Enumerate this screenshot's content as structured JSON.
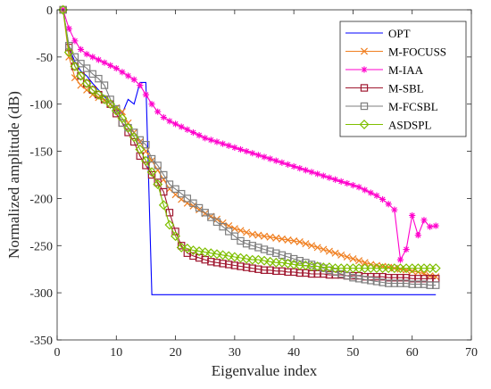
{
  "chart_data": {
    "type": "line",
    "xlabel": "Eigenvalue index",
    "ylabel": "Normalized amplitude (dB)",
    "xlim": [
      0,
      70
    ],
    "ylim": [
      -350,
      0
    ],
    "xticks": [
      0,
      10,
      20,
      30,
      40,
      50,
      60,
      70
    ],
    "yticks": [
      0,
      -50,
      -100,
      -150,
      -200,
      -250,
      -300,
      -350
    ],
    "grid": false,
    "legend_position": "top-right",
    "series": [
      {
        "name": "OPT",
        "color": "#0000FF",
        "marker": "none",
        "x": [
          1,
          2,
          3,
          4,
          5,
          6,
          7,
          8,
          9,
          10,
          11,
          12,
          13,
          14,
          15,
          16,
          17,
          20,
          30,
          40,
          50,
          60,
          64
        ],
        "y": [
          0,
          -40,
          -55,
          -65,
          -70,
          -78,
          -85,
          -92,
          -100,
          -105,
          -110,
          -95,
          -100,
          -77,
          -77,
          -302,
          -302,
          -302,
          -302,
          -302,
          -302,
          -302,
          -302
        ]
      },
      {
        "name": "M-FOCUSS",
        "color": "#F07F20",
        "marker": "x",
        "x": [
          1,
          2,
          3,
          4,
          5,
          6,
          7,
          8,
          9,
          10,
          11,
          12,
          13,
          14,
          15,
          16,
          17,
          18,
          19,
          20,
          21,
          22,
          23,
          24,
          25,
          26,
          27,
          28,
          29,
          30,
          31,
          32,
          33,
          34,
          35,
          36,
          37,
          38,
          39,
          40,
          41,
          42,
          43,
          44,
          45,
          46,
          47,
          48,
          49,
          50,
          51,
          52,
          53,
          54,
          55,
          56,
          57,
          58,
          59,
          60,
          61,
          62,
          63,
          64
        ],
        "y": [
          0,
          -50,
          -72,
          -80,
          -85,
          -90,
          -93,
          -96,
          -100,
          -104,
          -108,
          -120,
          -130,
          -140,
          -150,
          -160,
          -170,
          -180,
          -190,
          -196,
          -201,
          -205,
          -208,
          -212,
          -216,
          -219,
          -222,
          -226,
          -229,
          -232,
          -234,
          -236,
          -238,
          -239,
          -240,
          -241,
          -242,
          -243,
          -244,
          -245,
          -246,
          -248,
          -250,
          -252,
          -254,
          -256,
          -258,
          -260,
          -262,
          -264,
          -266,
          -268,
          -270,
          -271,
          -272,
          -273,
          -274,
          -275,
          -276,
          -277,
          -278,
          -280,
          -282,
          -283
        ]
      },
      {
        "name": "M-IAA",
        "color": "#FF00CC",
        "marker": "asterisk",
        "x": [
          1,
          2,
          3,
          4,
          5,
          6,
          7,
          8,
          9,
          10,
          11,
          12,
          13,
          14,
          15,
          16,
          17,
          18,
          19,
          20,
          21,
          22,
          23,
          24,
          25,
          26,
          27,
          28,
          29,
          30,
          31,
          32,
          33,
          34,
          35,
          36,
          37,
          38,
          39,
          40,
          41,
          42,
          43,
          44,
          45,
          46,
          47,
          48,
          49,
          50,
          51,
          52,
          53,
          54,
          55,
          56,
          57,
          58,
          59,
          60,
          61,
          62,
          63,
          64
        ],
        "y": [
          0,
          -20,
          -33,
          -42,
          -47,
          -50,
          -53,
          -56,
          -59,
          -62,
          -66,
          -70,
          -74,
          -80,
          -90,
          -100,
          -108,
          -114,
          -118,
          -121,
          -124,
          -127,
          -130,
          -133,
          -136,
          -138,
          -140,
          -142,
          -144,
          -146,
          -148,
          -150,
          -152,
          -154,
          -156,
          -158,
          -160,
          -162,
          -164,
          -166,
          -168,
          -170,
          -172,
          -174,
          -176,
          -178,
          -180,
          -182,
          -184,
          -186,
          -188,
          -191,
          -194,
          -197,
          -201,
          -206,
          -212,
          -265,
          -254,
          -218,
          -239,
          -223,
          -230,
          -229
        ]
      },
      {
        "name": "M-SBL",
        "color": "#A01830",
        "marker": "square",
        "x": [
          1,
          2,
          3,
          4,
          5,
          6,
          7,
          8,
          9,
          10,
          11,
          12,
          13,
          14,
          15,
          16,
          17,
          18,
          19,
          20,
          21,
          22,
          23,
          24,
          25,
          26,
          27,
          28,
          29,
          30,
          31,
          32,
          33,
          34,
          35,
          36,
          37,
          38,
          39,
          40,
          41,
          42,
          43,
          44,
          45,
          46,
          47,
          48,
          49,
          50,
          51,
          52,
          53,
          54,
          55,
          56,
          57,
          58,
          59,
          60,
          61,
          62,
          63,
          64
        ],
        "y": [
          0,
          -40,
          -60,
          -70,
          -78,
          -85,
          -90,
          -95,
          -100,
          -110,
          -120,
          -130,
          -140,
          -155,
          -165,
          -175,
          -183,
          -193,
          -215,
          -235,
          -250,
          -258,
          -261,
          -263,
          -265,
          -267,
          -268,
          -269,
          -270,
          -271,
          -272,
          -273,
          -274,
          -275,
          -276,
          -276,
          -277,
          -277,
          -278,
          -278,
          -279,
          -279,
          -280,
          -280,
          -280,
          -281,
          -281,
          -281,
          -282,
          -282,
          -282,
          -283,
          -283,
          -283,
          -283,
          -284,
          -284,
          -284,
          -284,
          -285,
          -285,
          -285,
          -285,
          -285
        ]
      },
      {
        "name": "M-FCSBL",
        "color": "#7F7F7F",
        "marker": "square",
        "x": [
          1,
          2,
          3,
          4,
          5,
          6,
          7,
          8,
          9,
          10,
          11,
          12,
          13,
          14,
          15,
          16,
          17,
          18,
          19,
          20,
          21,
          22,
          23,
          24,
          25,
          26,
          27,
          28,
          29,
          30,
          31,
          32,
          33,
          34,
          35,
          36,
          37,
          38,
          39,
          40,
          41,
          42,
          43,
          44,
          45,
          46,
          47,
          48,
          49,
          50,
          51,
          52,
          53,
          54,
          55,
          56,
          57,
          58,
          59,
          60,
          61,
          62,
          63,
          64
        ],
        "y": [
          0,
          -38,
          -50,
          -57,
          -62,
          -68,
          -73,
          -80,
          -95,
          -105,
          -120,
          -125,
          -130,
          -138,
          -143,
          -158,
          -165,
          -175,
          -185,
          -190,
          -195,
          -200,
          -205,
          -210,
          -215,
          -220,
          -225,
          -230,
          -235,
          -240,
          -245,
          -248,
          -250,
          -252,
          -254,
          -256,
          -258,
          -260,
          -262,
          -264,
          -266,
          -268,
          -270,
          -272,
          -274,
          -276,
          -278,
          -280,
          -282,
          -284,
          -285,
          -286,
          -287,
          -288,
          -289,
          -290,
          -290,
          -290,
          -290,
          -291,
          -291,
          -291,
          -292,
          -292
        ]
      },
      {
        "name": "ASDSPL",
        "color": "#7FBF00",
        "marker": "diamond",
        "x": [
          1,
          2,
          3,
          4,
          5,
          6,
          7,
          8,
          9,
          10,
          11,
          12,
          13,
          14,
          15,
          16,
          17,
          18,
          19,
          20,
          21,
          22,
          23,
          24,
          25,
          26,
          27,
          28,
          29,
          30,
          31,
          32,
          33,
          34,
          35,
          36,
          37,
          38,
          39,
          40,
          41,
          42,
          43,
          44,
          45,
          46,
          47,
          48,
          49,
          50,
          51,
          52,
          53,
          54,
          55,
          56,
          57,
          58,
          59,
          60,
          61,
          62,
          63,
          64
        ],
        "y": [
          0,
          -45,
          -60,
          -70,
          -78,
          -85,
          -90,
          -95,
          -100,
          -107,
          -115,
          -125,
          -135,
          -148,
          -160,
          -172,
          -185,
          -207,
          -228,
          -240,
          -252,
          -253,
          -255,
          -256,
          -257,
          -258,
          -259,
          -260,
          -261,
          -262,
          -263,
          -264,
          -265,
          -265,
          -266,
          -267,
          -268,
          -268,
          -269,
          -270,
          -271,
          -271,
          -272,
          -272,
          -273,
          -273,
          -274,
          -274,
          -274,
          -274,
          -274,
          -274,
          -274,
          -274,
          -274,
          -274,
          -274,
          -274,
          -274,
          -274,
          -274,
          -274,
          -274,
          -274
        ]
      }
    ]
  }
}
